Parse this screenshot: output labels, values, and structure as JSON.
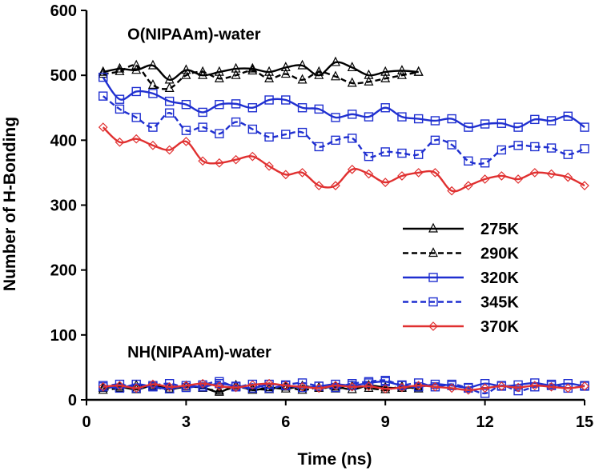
{
  "chart_data": {
    "type": "line",
    "xlabel": "Time (ns)",
    "ylabel": "Number of H-Bonding",
    "xlim": [
      0,
      15
    ],
    "ylim": [
      0,
      600
    ],
    "xticks": [
      0,
      3,
      6,
      9,
      12,
      15
    ],
    "yticks": [
      0,
      100,
      200,
      300,
      400,
      500,
      600
    ],
    "grid": false,
    "legend_position": "right",
    "annotations": [
      {
        "text": "O(NIPAAm)-water",
        "x": 0.8,
        "y": 555
      },
      {
        "text": "NH(NIPAAm)-water",
        "x": 0.8,
        "y": 65
      }
    ],
    "series": [
      {
        "name": "275K",
        "color": "#000000",
        "dash": "solid",
        "marker": "triangle",
        "x": [
          0.5,
          1,
          1.5,
          2,
          2.5,
          3,
          3.5,
          4,
          4.5,
          5,
          5.5,
          6,
          6.5,
          7,
          7.5,
          8,
          8.5,
          9,
          9.5,
          10
        ],
        "y": [
          505,
          510,
          508,
          515,
          493,
          508,
          500,
          505,
          510,
          510,
          505,
          512,
          515,
          500,
          520,
          512,
          500,
          505,
          507,
          505
        ]
      },
      {
        "name": "290K",
        "color": "#000000",
        "dash": "dashed",
        "marker": "triangle",
        "x": [
          0.5,
          1,
          1.5,
          2,
          2.5,
          3,
          3.5,
          4,
          4.5,
          5,
          5.5,
          6,
          6.5,
          7,
          7.5,
          8,
          8.5,
          9,
          9.5,
          10
        ],
        "y": [
          502,
          506,
          515,
          485,
          480,
          500,
          505,
          495,
          500,
          507,
          495,
          502,
          493,
          505,
          498,
          488,
          490,
          495,
          500,
          505
        ]
      },
      {
        "name": "320K",
        "color": "#1f2fd0",
        "dash": "solid",
        "marker": "square",
        "x": [
          0.5,
          1,
          1.5,
          2,
          2.5,
          3,
          3.5,
          4,
          4.5,
          5,
          5.5,
          6,
          6.5,
          7,
          7.5,
          8,
          8.5,
          9,
          9.5,
          10,
          10.5,
          11,
          11.5,
          12,
          12.5,
          13,
          13.5,
          14,
          14.5,
          15
        ],
        "y": [
          497,
          463,
          475,
          472,
          460,
          455,
          443,
          455,
          456,
          450,
          462,
          462,
          450,
          448,
          435,
          440,
          436,
          450,
          436,
          433,
          430,
          433,
          420,
          425,
          426,
          420,
          432,
          430,
          437,
          420
        ]
      },
      {
        "name": "345K",
        "color": "#1f2fd0",
        "dash": "dashed",
        "marker": "square",
        "x": [
          0.5,
          1,
          1.5,
          2,
          2.5,
          3,
          3.5,
          4,
          4.5,
          5,
          5.5,
          6,
          6.5,
          7,
          7.5,
          8,
          8.5,
          9,
          9.5,
          10,
          10.5,
          11,
          11.5,
          12,
          12.5,
          13,
          13.5,
          14,
          14.5,
          15
        ],
        "y": [
          468,
          448,
          435,
          420,
          442,
          415,
          420,
          410,
          428,
          417,
          405,
          409,
          412,
          390,
          400,
          403,
          375,
          382,
          380,
          378,
          400,
          393,
          368,
          365,
          385,
          392,
          390,
          388,
          378,
          387
        ]
      },
      {
        "name": "370K",
        "color": "#e03030",
        "dash": "solid",
        "marker": "diamond",
        "x": [
          0.5,
          1,
          1.5,
          2,
          2.5,
          3,
          3.5,
          4,
          4.5,
          5,
          5.5,
          6,
          6.5,
          7,
          7.5,
          8,
          8.5,
          9,
          9.5,
          10,
          10.5,
          11,
          11.5,
          12,
          12.5,
          13,
          13.5,
          14,
          14.5,
          15
        ],
        "y": [
          420,
          397,
          402,
          392,
          385,
          398,
          368,
          365,
          370,
          375,
          360,
          347,
          350,
          330,
          330,
          355,
          348,
          335,
          345,
          350,
          350,
          322,
          330,
          340,
          345,
          340,
          350,
          348,
          343,
          330
        ]
      },
      {
        "name": "275K",
        "color": "#000000",
        "dash": "solid",
        "marker": "triangle",
        "x": [
          0.5,
          1,
          1.5,
          2,
          2.5,
          3,
          3.5,
          4,
          4.5,
          5,
          5.5,
          6,
          6.5,
          7,
          7.5,
          8,
          8.5,
          9,
          9.5,
          10
        ],
        "y": [
          18,
          20,
          16,
          22,
          17,
          20,
          19,
          12,
          22,
          15,
          19,
          17,
          21,
          18,
          20,
          16,
          22,
          19,
          18,
          20
        ]
      },
      {
        "name": "290K",
        "color": "#000000",
        "dash": "dashed",
        "marker": "triangle",
        "x": [
          0.5,
          1,
          1.5,
          2,
          2.5,
          3,
          3.5,
          4,
          4.5,
          5,
          5.5,
          6,
          6.5,
          7,
          7.5,
          8,
          8.5,
          9,
          9.5,
          10
        ],
        "y": [
          15,
          18,
          22,
          20,
          16,
          21,
          18,
          14,
          19,
          17,
          16,
          20,
          15,
          19,
          17,
          21,
          18,
          16,
          20,
          17
        ]
      },
      {
        "name": "320K",
        "color": "#1f2fd0",
        "dash": "solid",
        "marker": "square",
        "x": [
          0.5,
          1,
          1.5,
          2,
          2.5,
          3,
          3.5,
          4,
          4.5,
          5,
          5.5,
          6,
          6.5,
          7,
          7.5,
          8,
          8.5,
          9,
          9.5,
          10,
          10.5,
          11,
          11.5,
          12,
          12.5,
          13,
          13.5,
          14,
          14.5,
          15
        ],
        "y": [
          22,
          18,
          24,
          20,
          17,
          22,
          20,
          25,
          21,
          18,
          24,
          22,
          19,
          21,
          24,
          22,
          26,
          28,
          22,
          20,
          24,
          22,
          19,
          25,
          21,
          23,
          26,
          22,
          25,
          21
        ]
      },
      {
        "name": "345K",
        "color": "#1f2fd0",
        "dash": "dashed",
        "marker": "square",
        "x": [
          0.5,
          1,
          1.5,
          2,
          2.5,
          3,
          3.5,
          4,
          4.5,
          5,
          5.5,
          6,
          6.5,
          7,
          7.5,
          8,
          8.5,
          9,
          9.5,
          10,
          10.5,
          11,
          11.5,
          12,
          12.5,
          13,
          13.5,
          14,
          14.5,
          15
        ],
        "y": [
          20,
          24,
          18,
          22,
          25,
          19,
          23,
          28,
          20,
          24,
          18,
          23,
          26,
          21,
          19,
          25,
          28,
          30,
          23,
          26,
          20,
          24,
          18,
          10,
          22,
          14,
          20,
          24,
          18,
          22
        ]
      },
      {
        "name": "370K",
        "color": "#e03030",
        "dash": "solid",
        "marker": "diamond",
        "x": [
          0.5,
          1,
          1.5,
          2,
          2.5,
          3,
          3.5,
          4,
          4.5,
          5,
          5.5,
          6,
          6.5,
          7,
          7.5,
          8,
          8.5,
          9,
          9.5,
          10,
          10.5,
          11,
          11.5,
          12,
          12.5,
          13,
          13.5,
          14,
          14.5,
          15
        ],
        "y": [
          20,
          22,
          18,
          24,
          20,
          22,
          25,
          21,
          19,
          23,
          25,
          22,
          20,
          18,
          22,
          20,
          21,
          17,
          19,
          22,
          20,
          18,
          15,
          18,
          21,
          19,
          22,
          20,
          18,
          21
        ]
      }
    ],
    "legend": [
      {
        "name": "275K",
        "color": "#000000",
        "dash": "solid",
        "marker": "triangle"
      },
      {
        "name": "290K",
        "color": "#000000",
        "dash": "dashed",
        "marker": "triangle"
      },
      {
        "name": "320K",
        "color": "#1f2fd0",
        "dash": "solid",
        "marker": "square"
      },
      {
        "name": "345K",
        "color": "#1f2fd0",
        "dash": "dashed",
        "marker": "square"
      },
      {
        "name": "370K",
        "color": "#e03030",
        "dash": "solid",
        "marker": "diamond"
      }
    ]
  }
}
